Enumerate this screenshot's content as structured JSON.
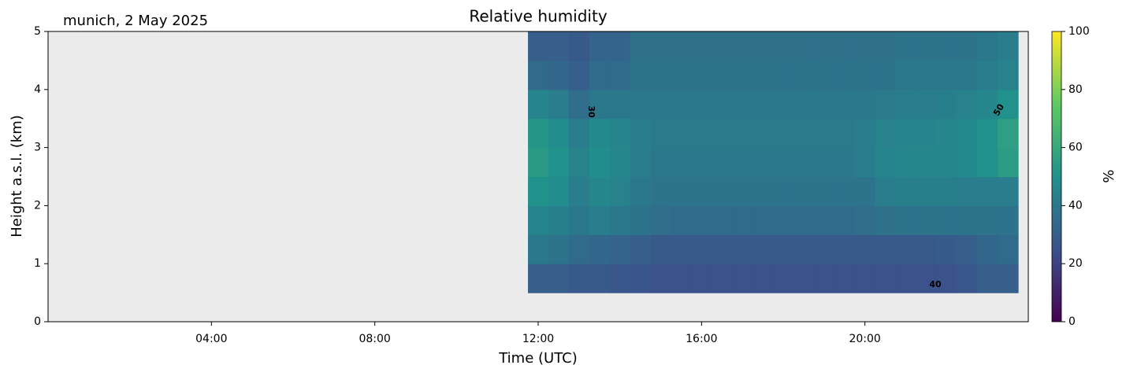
{
  "chart_data": {
    "type": "contourf",
    "title": "Relative humidity",
    "subtitle": "munich, 2 May 2025",
    "x_label": "Time (UTC)",
    "y_label": "Height a.s.l. (km)",
    "colorbar_label": "%",
    "colormap": "viridis",
    "xlim": [
      0,
      24
    ],
    "xticks": [
      {
        "value": 4,
        "label": "04:00"
      },
      {
        "value": 8,
        "label": "08:00"
      },
      {
        "value": 12,
        "label": "12:00"
      },
      {
        "value": 16,
        "label": "16:00"
      },
      {
        "value": 20,
        "label": "20:00"
      }
    ],
    "ylim": [
      0,
      5
    ],
    "yticks": [
      0,
      1,
      2,
      3,
      4,
      5
    ],
    "clim": [
      0,
      100
    ],
    "cticks": [
      0,
      20,
      40,
      60,
      80,
      100
    ],
    "contour_levels": [
      30,
      50,
      40
    ],
    "x": [
      12,
      12.5,
      13,
      13.5,
      14,
      14.5,
      15,
      15.5,
      16,
      16.5,
      17,
      17.5,
      18,
      18.5,
      19,
      19.5,
      20,
      20.5,
      21,
      21.5,
      22,
      22.5,
      23,
      23.5
    ],
    "y": [
      0.75,
      1.25,
      1.75,
      2.25,
      2.75,
      3.25,
      3.75,
      4.25,
      4.75
    ],
    "values": [
      [
        30,
        30,
        28,
        28,
        27,
        26,
        25,
        25,
        25,
        25,
        25,
        25,
        25,
        25,
        25,
        25,
        25,
        25,
        25,
        25,
        25,
        27,
        30,
        30
      ],
      [
        40,
        38,
        35,
        33,
        32,
        30,
        28,
        28,
        28,
        28,
        28,
        28,
        28,
        28,
        28,
        28,
        28,
        28,
        28,
        28,
        29,
        30,
        33,
        35
      ],
      [
        45,
        43,
        40,
        42,
        40,
        38,
        36,
        35,
        35,
        35,
        35,
        35,
        35,
        35,
        35,
        35,
        36,
        37,
        38,
        38,
        38,
        38,
        38,
        38
      ],
      [
        50,
        48,
        42,
        46,
        44,
        40,
        38,
        38,
        38,
        38,
        38,
        38,
        38,
        38,
        38,
        38,
        38,
        42,
        43,
        43,
        43,
        42,
        42,
        42
      ],
      [
        54,
        50,
        44,
        48,
        46,
        42,
        40,
        40,
        40,
        40,
        40,
        40,
        40,
        40,
        40,
        40,
        42,
        45,
        46,
        46,
        46,
        47,
        50,
        55
      ],
      [
        52,
        48,
        42,
        47,
        45,
        42,
        41,
        41,
        41,
        41,
        41,
        41,
        41,
        41,
        41,
        41,
        42,
        44,
        45,
        45,
        46,
        47,
        50,
        56
      ],
      [
        45,
        42,
        36,
        40,
        40,
        40,
        40,
        40,
        40,
        40,
        40,
        40,
        40,
        40,
        40,
        40,
        40,
        41,
        42,
        42,
        43,
        44,
        46,
        50
      ],
      [
        35,
        33,
        30,
        35,
        35,
        38,
        38,
        38,
        38,
        38,
        38,
        38,
        38,
        38,
        38,
        38,
        38,
        38,
        40,
        40,
        40,
        40,
        42,
        44
      ],
      [
        30,
        30,
        28,
        32,
        32,
        37,
        37,
        37,
        37,
        37,
        37,
        37,
        37,
        37,
        37,
        37,
        37,
        37,
        38,
        38,
        38,
        38,
        40,
        42
      ]
    ]
  }
}
